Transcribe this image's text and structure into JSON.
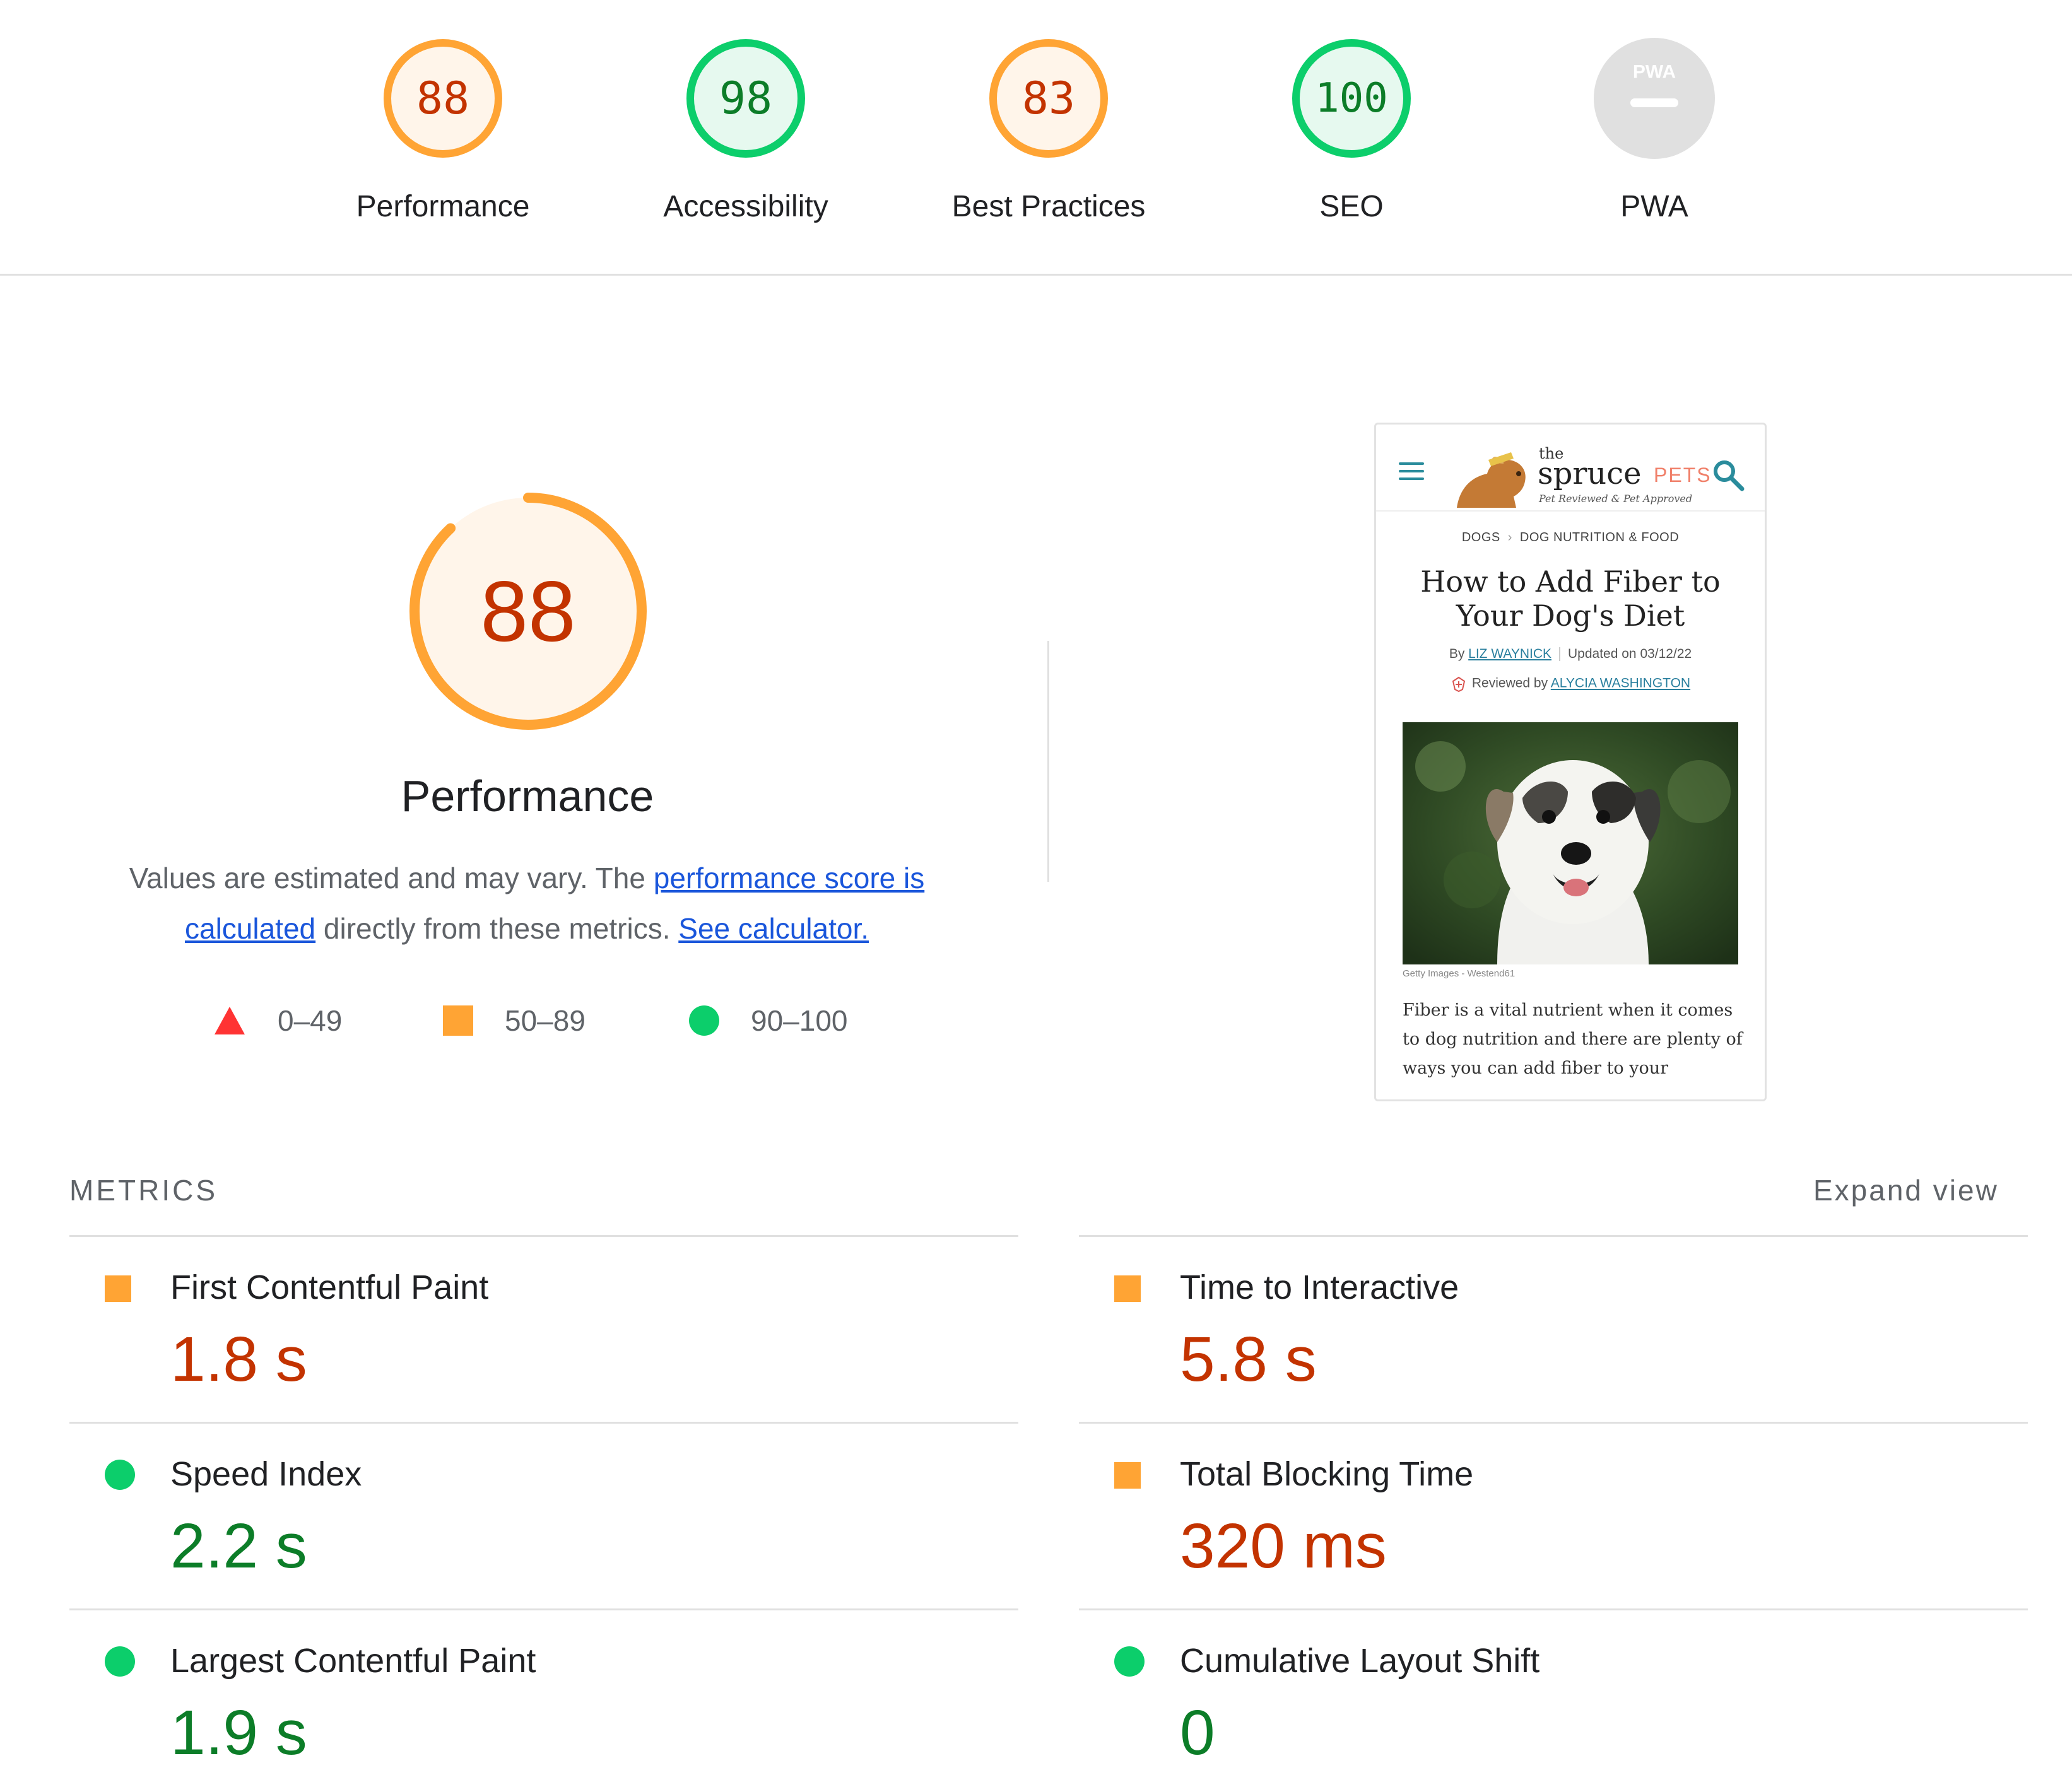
{
  "categories": [
    {
      "label": "Performance",
      "score": "88",
      "value": 88,
      "rating": "average"
    },
    {
      "label": "Accessibility",
      "score": "98",
      "value": 98,
      "rating": "pass"
    },
    {
      "label": "Best Practices",
      "score": "83",
      "value": 83,
      "rating": "average"
    },
    {
      "label": "SEO",
      "score": "100",
      "value": 100,
      "rating": "pass"
    },
    {
      "label": "PWA",
      "score": "PWA",
      "rating": "na"
    }
  ],
  "performance": {
    "score": "88",
    "value": 88,
    "title": "Performance",
    "desc_prefix": "Values are estimated and may vary. The ",
    "desc_link1": "performance score is calculated",
    "desc_mid": " directly from these metrics. ",
    "desc_link2": "See calculator."
  },
  "legend": [
    {
      "range": "0–49",
      "shape": "triangle",
      "color": "#ff3333"
    },
    {
      "range": "50–89",
      "shape": "square",
      "color": "#ffa434"
    },
    {
      "range": "90–100",
      "shape": "circle",
      "color": "#0cce6b"
    }
  ],
  "preview": {
    "logo_the": "the",
    "logo_spruce": "spruce",
    "logo_pets": "PETS",
    "logo_tagline": "Pet Reviewed & Pet Approved",
    "breadcrumb_1": "DOGS",
    "breadcrumb_sep": "›",
    "breadcrumb_2": "DOG NUTRITION & FOOD",
    "title": "How to Add Fiber to Your Dog's Diet",
    "by_label": "By ",
    "author": "LIZ WAYNICK",
    "updated": "Updated on 03/12/22",
    "reviewed_label": "Reviewed by ",
    "reviewer": "ALYCIA WASHINGTON",
    "credit": "Getty Images - Westend61",
    "body": "Fiber is a vital nutrient when it comes to dog nutrition and there are plenty of ways you can add fiber to your"
  },
  "metrics": {
    "heading": "METRICS",
    "expand": "Expand view",
    "items": [
      {
        "label": "First Contentful Paint",
        "value": "1.8 s",
        "rating": "average"
      },
      {
        "label": "Time to Interactive",
        "value": "5.8 s",
        "rating": "average"
      },
      {
        "label": "Speed Index",
        "value": "2.2 s",
        "rating": "pass"
      },
      {
        "label": "Total Blocking Time",
        "value": "320 ms",
        "rating": "average"
      },
      {
        "label": "Largest Contentful Paint",
        "value": "1.9 s",
        "rating": "pass"
      },
      {
        "label": "Cumulative Layout Shift",
        "value": "0",
        "rating": "pass"
      }
    ]
  },
  "colors": {
    "average_stroke": "#ffa434",
    "average_fill": "#fff5ea",
    "average_text": "#c33300",
    "pass_stroke": "#0cce6b",
    "pass_fill": "#e6f9ef",
    "pass_text": "#0c7d28",
    "na_fill": "#e0e0e0",
    "link": "#1a56db"
  }
}
